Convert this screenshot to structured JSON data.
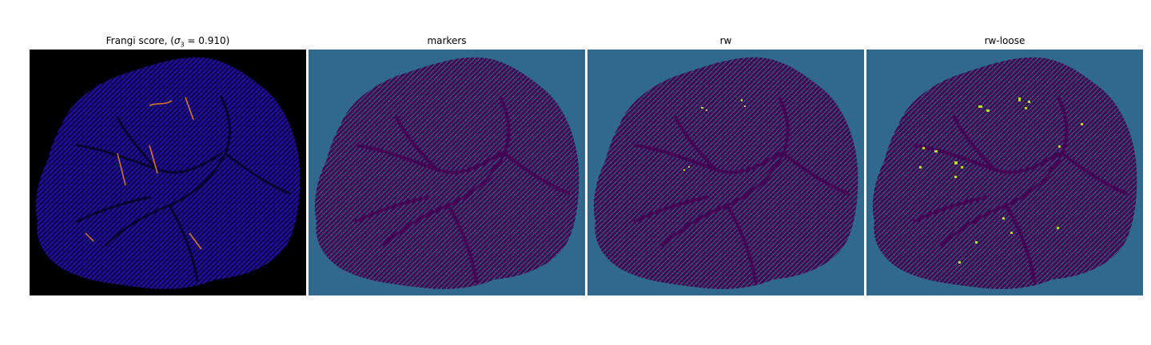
{
  "panels": [
    {
      "title_prefix": "Frangi score, (",
      "title_sigma": "σ",
      "title_sub": "3",
      "title_suffix": " = 0.910)"
    },
    {
      "title": "markers"
    },
    {
      "title": "rw"
    },
    {
      "title": "rw-loose"
    }
  ],
  "colors": {
    "frangi_background": "#000000",
    "frangi_tissue": "#1a0a8a",
    "frangi_highlight": "#f28a2a",
    "viridis_background": "#31688e",
    "viridis_tissue": "#440154",
    "viridis_mid": "#21918c",
    "viridis_high": "#b5de2b"
  }
}
